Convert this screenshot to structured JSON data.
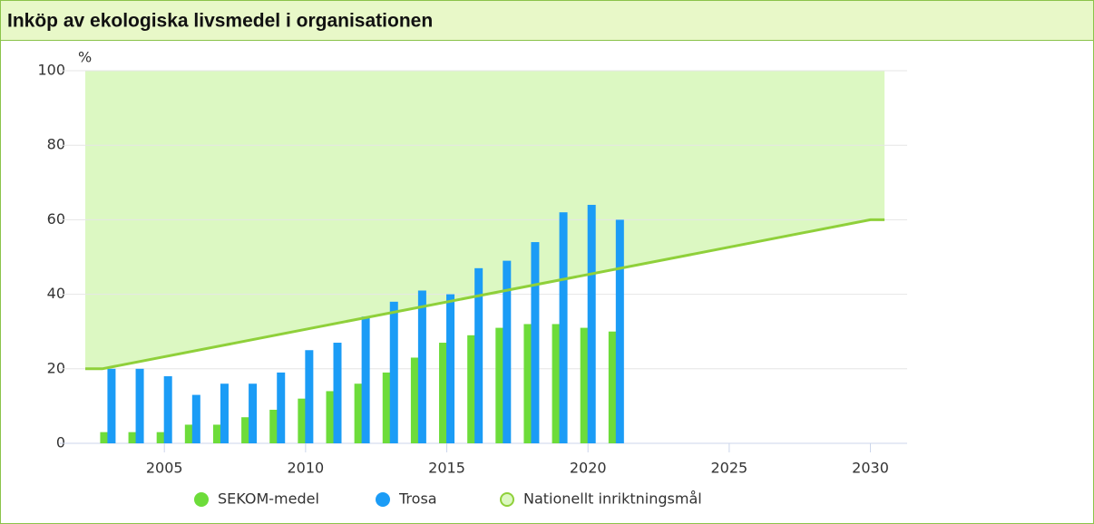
{
  "chart_data": {
    "type": "bar",
    "title": "Inköp av ekologiska livsmedel i organisationen",
    "y_label": "%",
    "x": [
      2003,
      2004,
      2005,
      2006,
      2007,
      2008,
      2009,
      2010,
      2011,
      2012,
      2013,
      2014,
      2015,
      2016,
      2017,
      2018,
      2019,
      2020,
      2021
    ],
    "series": [
      {
        "name": "SEKOM-medel",
        "color": "#6ddc3a",
        "values": [
          3,
          3,
          3,
          5,
          5,
          7,
          9,
          12,
          14,
          16,
          19,
          23,
          27,
          29,
          31,
          32,
          32,
          31,
          30
        ]
      },
      {
        "name": "Trosa",
        "color": "#1b9cf6",
        "values": [
          20,
          20,
          18,
          13,
          16,
          16,
          19,
          25,
          27,
          34,
          38,
          41,
          40,
          47,
          49,
          54,
          62,
          64,
          60
        ]
      },
      {
        "name": "Nationellt inriktningsmål",
        "type": "area",
        "color": "#8fd03a",
        "fill": "#dcf8c2",
        "x": [
          2002.2,
          2002.8,
          2030,
          2030.5
        ],
        "values": [
          20,
          20,
          60,
          60
        ]
      }
    ],
    "xlim": [
      2001.3,
      2031.3
    ],
    "xticks": [
      2005,
      2010,
      2015,
      2020,
      2025,
      2030
    ],
    "ylim": [
      0,
      100
    ],
    "yticks": [
      0,
      20,
      40,
      60,
      80,
      100
    ],
    "grid": true
  }
}
